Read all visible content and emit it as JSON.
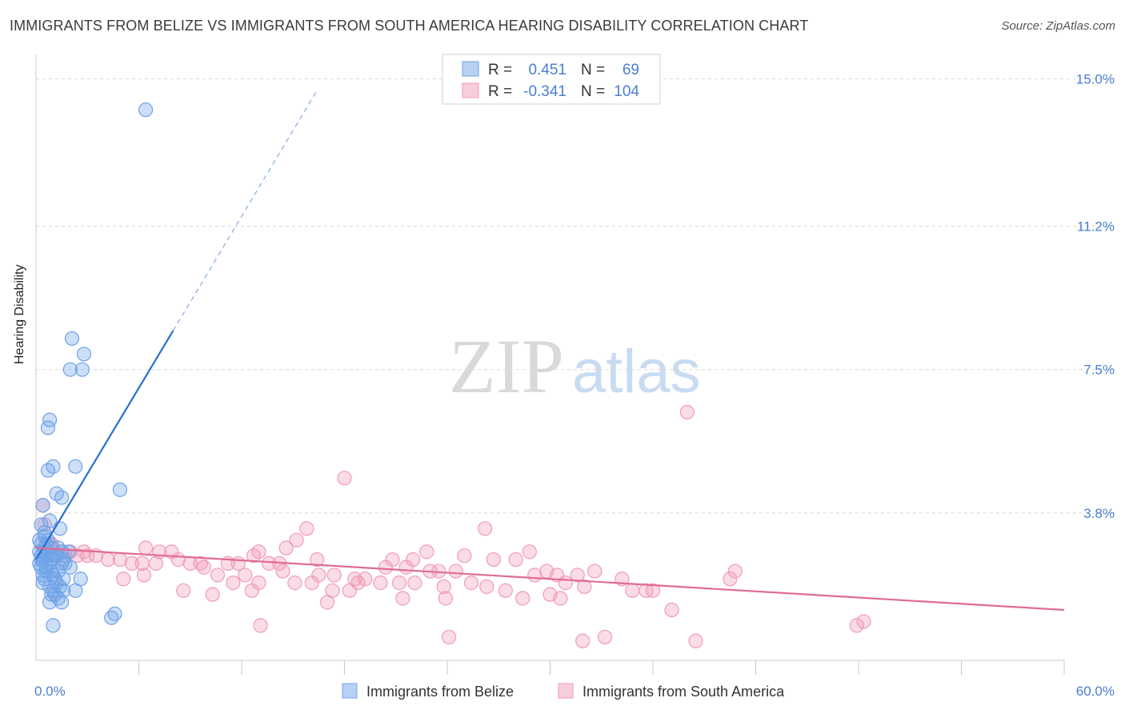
{
  "title": "IMMIGRANTS FROM BELIZE VS IMMIGRANTS FROM SOUTH AMERICA HEARING DISABILITY CORRELATION CHART",
  "source": "Source: ZipAtlas.com",
  "watermark": {
    "zip": "ZIP",
    "atlas": "atlas"
  },
  "chart_data": {
    "type": "scatter",
    "xlabel": "",
    "ylabel": "Hearing Disability",
    "xlim": [
      0,
      60
    ],
    "ylim": [
      0,
      15.4
    ],
    "x_tick_labels": [
      "0.0%",
      "60.0%"
    ],
    "y_ticks": [
      3.8,
      7.5,
      11.2,
      15.0
    ],
    "y_tick_labels": [
      "3.8%",
      "7.5%",
      "11.2%",
      "15.0%"
    ],
    "grid": true,
    "colors": {
      "belize": "#6fa3e8",
      "belize_line": "#2a6fcf",
      "south_america": "#f19bb5",
      "south_america_line": "#e06b96",
      "tick_text": "#4a7ed0"
    },
    "legend": {
      "position": "top-center",
      "entries": [
        {
          "r_label": "R =",
          "r_value": "0.451",
          "n_label": "N =",
          "n_value": "69"
        },
        {
          "r_label": "R =",
          "r_value": "-0.341",
          "n_label": "N =",
          "n_value": "104"
        }
      ]
    },
    "bottom_legend": [
      "Immigrants from Belize",
      "Immigrants from South America"
    ],
    "series": [
      {
        "name": "Immigrants from Belize",
        "trend": {
          "x0": 0.0,
          "y0": 2.6,
          "x_solid_end": 8.0,
          "y_solid_end": 8.5,
          "x_dash_end": 16.4,
          "y_dash_end": 14.7
        },
        "points": [
          [
            6.4,
            14.2
          ],
          [
            2.1,
            8.3
          ],
          [
            2.8,
            7.9
          ],
          [
            2.0,
            7.5
          ],
          [
            2.7,
            7.5
          ],
          [
            0.8,
            6.2
          ],
          [
            0.7,
            6.0
          ],
          [
            1.0,
            5.0
          ],
          [
            0.7,
            4.9
          ],
          [
            2.3,
            5.0
          ],
          [
            4.9,
            4.4
          ],
          [
            1.2,
            4.3
          ],
          [
            1.5,
            4.2
          ],
          [
            0.4,
            4.0
          ],
          [
            0.8,
            3.6
          ],
          [
            1.4,
            3.4
          ],
          [
            0.5,
            3.2
          ],
          [
            0.3,
            3.0
          ],
          [
            0.6,
            3.0
          ],
          [
            0.9,
            2.9
          ],
          [
            0.2,
            2.8
          ],
          [
            0.5,
            2.8
          ],
          [
            0.3,
            2.7
          ],
          [
            0.7,
            2.7
          ],
          [
            1.1,
            2.7
          ],
          [
            0.4,
            2.6
          ],
          [
            0.2,
            2.5
          ],
          [
            0.8,
            2.5
          ],
          [
            0.3,
            2.4
          ],
          [
            0.6,
            2.4
          ],
          [
            1.5,
            2.5
          ],
          [
            2.0,
            2.4
          ],
          [
            0.9,
            2.3
          ],
          [
            1.3,
            2.3
          ],
          [
            0.4,
            2.2
          ],
          [
            1.0,
            2.2
          ],
          [
            1.6,
            2.1
          ],
          [
            2.6,
            2.1
          ],
          [
            1.2,
            2.0
          ],
          [
            0.8,
            1.9
          ],
          [
            1.4,
            1.9
          ],
          [
            1.0,
            1.8
          ],
          [
            1.6,
            1.8
          ],
          [
            1.1,
            1.7
          ],
          [
            1.3,
            1.6
          ],
          [
            0.8,
            1.5
          ],
          [
            1.5,
            1.5
          ],
          [
            2.3,
            1.8
          ],
          [
            1.5,
            2.8
          ],
          [
            1.9,
            2.8
          ],
          [
            1.7,
            2.5
          ],
          [
            0.5,
            3.3
          ],
          [
            0.3,
            3.5
          ],
          [
            0.5,
            2.9
          ],
          [
            0.2,
            3.1
          ],
          [
            1.2,
            2.7
          ],
          [
            0.9,
            2.6
          ],
          [
            0.6,
            2.3
          ],
          [
            0.4,
            2.0
          ],
          [
            1.1,
            2.1
          ],
          [
            4.6,
            1.2
          ],
          [
            4.4,
            1.1
          ],
          [
            1.0,
            0.9
          ],
          [
            0.3,
            2.6
          ],
          [
            0.7,
            3.1
          ],
          [
            1.3,
            2.9
          ],
          [
            1.6,
            2.6
          ],
          [
            0.5,
            2.1
          ],
          [
            0.9,
            1.7
          ]
        ]
      },
      {
        "name": "Immigrants from South America",
        "trend": {
          "x0": 0.0,
          "y0": 2.9,
          "x1": 60.0,
          "y1": 1.3
        },
        "points": [
          [
            38.0,
            6.4
          ],
          [
            18.0,
            4.7
          ],
          [
            0.4,
            4.0
          ],
          [
            0.5,
            3.5
          ],
          [
            15.8,
            3.4
          ],
          [
            26.2,
            3.4
          ],
          [
            15.2,
            3.1
          ],
          [
            14.6,
            2.9
          ],
          [
            6.4,
            2.9
          ],
          [
            7.2,
            2.8
          ],
          [
            7.9,
            2.8
          ],
          [
            13.0,
            2.8
          ],
          [
            12.7,
            2.7
          ],
          [
            22.8,
            2.8
          ],
          [
            25.0,
            2.7
          ],
          [
            28.8,
            2.8
          ],
          [
            16.4,
            2.6
          ],
          [
            20.8,
            2.6
          ],
          [
            22.0,
            2.6
          ],
          [
            26.7,
            2.6
          ],
          [
            8.3,
            2.6
          ],
          [
            9.0,
            2.5
          ],
          [
            9.6,
            2.5
          ],
          [
            11.2,
            2.5
          ],
          [
            11.8,
            2.5
          ],
          [
            13.6,
            2.5
          ],
          [
            14.2,
            2.5
          ],
          [
            20.4,
            2.4
          ],
          [
            21.6,
            2.4
          ],
          [
            23.0,
            2.3
          ],
          [
            23.5,
            2.3
          ],
          [
            24.5,
            2.3
          ],
          [
            28.0,
            2.6
          ],
          [
            29.8,
            2.3
          ],
          [
            30.4,
            2.2
          ],
          [
            31.6,
            2.2
          ],
          [
            32.6,
            2.3
          ],
          [
            34.2,
            2.1
          ],
          [
            40.5,
            2.1
          ],
          [
            40.8,
            2.3
          ],
          [
            2.0,
            2.8
          ],
          [
            2.8,
            2.8
          ],
          [
            3.5,
            2.7
          ],
          [
            4.2,
            2.6
          ],
          [
            4.9,
            2.6
          ],
          [
            5.6,
            2.5
          ],
          [
            6.2,
            2.5
          ],
          [
            7.0,
            2.5
          ],
          [
            9.8,
            2.4
          ],
          [
            10.6,
            2.2
          ],
          [
            12.2,
            2.2
          ],
          [
            14.4,
            2.3
          ],
          [
            16.5,
            2.2
          ],
          [
            17.4,
            2.2
          ],
          [
            18.6,
            2.1
          ],
          [
            19.2,
            2.1
          ],
          [
            20.1,
            2.0
          ],
          [
            21.2,
            2.0
          ],
          [
            22.1,
            2.0
          ],
          [
            23.8,
            1.9
          ],
          [
            25.4,
            2.0
          ],
          [
            26.3,
            1.9
          ],
          [
            27.4,
            1.8
          ],
          [
            17.3,
            1.8
          ],
          [
            18.8,
            2.0
          ],
          [
            10.3,
            1.7
          ],
          [
            12.6,
            1.8
          ],
          [
            8.6,
            1.8
          ],
          [
            16.1,
            2.0
          ],
          [
            35.6,
            1.8
          ],
          [
            32.0,
            1.9
          ],
          [
            34.8,
            1.8
          ],
          [
            28.4,
            1.6
          ],
          [
            30.6,
            1.6
          ],
          [
            17.0,
            1.5
          ],
          [
            21.4,
            1.6
          ],
          [
            23.9,
            1.6
          ],
          [
            37.1,
            1.3
          ],
          [
            48.3,
            1.0
          ],
          [
            47.9,
            0.9
          ],
          [
            13.1,
            0.9
          ],
          [
            24.1,
            0.6
          ],
          [
            31.9,
            0.5
          ],
          [
            33.2,
            0.6
          ],
          [
            38.5,
            0.5
          ],
          [
            5.1,
            2.1
          ],
          [
            6.3,
            2.2
          ],
          [
            11.5,
            2.0
          ],
          [
            15.1,
            2.0
          ],
          [
            13.0,
            2.0
          ],
          [
            18.3,
            1.8
          ],
          [
            30.0,
            1.7
          ],
          [
            36.0,
            1.8
          ],
          [
            1.5,
            2.8
          ],
          [
            1.0,
            2.9
          ],
          [
            0.8,
            3.0
          ],
          [
            1.2,
            2.7
          ],
          [
            0.6,
            2.7
          ],
          [
            0.9,
            3.0
          ],
          [
            1.7,
            2.7
          ],
          [
            2.4,
            2.7
          ],
          [
            3.0,
            2.7
          ],
          [
            29.1,
            2.2
          ],
          [
            30.9,
            2.0
          ]
        ]
      }
    ]
  }
}
